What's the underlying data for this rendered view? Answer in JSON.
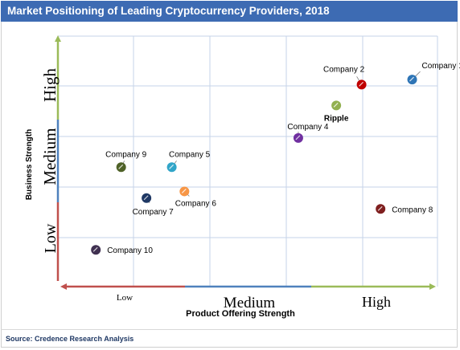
{
  "header": {
    "title": "Market Positioning of Leading Cryptocurrency Providers, 2018"
  },
  "footer": {
    "source": "Source: Credence Research Analysis"
  },
  "colors": {
    "title_bar": "#3d6bb3",
    "low": "#c0504d",
    "medium": "#4f81bd",
    "high": "#9bbb59",
    "grid": "#c5d3e8"
  },
  "chart_data": {
    "type": "scatter",
    "xlabel": "Product Offering Strength",
    "ylabel": "Business Strength",
    "xlim": [
      0,
      3
    ],
    "ylim": [
      0,
      3
    ],
    "grid": true,
    "x_level_labels": [
      "Low",
      "Medium",
      "High"
    ],
    "y_level_labels": [
      "Low",
      "Medium",
      "High"
    ],
    "points": [
      {
        "label": "Company 1",
        "x": 2.8,
        "y": 2.48,
        "color": "#2e75b6"
      },
      {
        "label": "Company 2",
        "x": 2.4,
        "y": 2.42,
        "color": "#c00000"
      },
      {
        "label": "Ripple",
        "x": 2.2,
        "y": 2.17,
        "color": "#92b050"
      },
      {
        "label": "Company 4",
        "x": 1.9,
        "y": 1.78,
        "color": "#7030a0"
      },
      {
        "label": "Company 5",
        "x": 0.9,
        "y": 1.43,
        "color": "#31a5c8"
      },
      {
        "label": "Company 6",
        "x": 1.0,
        "y": 1.14,
        "color": "#f79646"
      },
      {
        "label": "Company 7",
        "x": 0.7,
        "y": 1.06,
        "color": "#1f3864"
      },
      {
        "label": "Company 8",
        "x": 2.55,
        "y": 0.93,
        "color": "#7f1f1f"
      },
      {
        "label": "Company 9",
        "x": 0.5,
        "y": 1.43,
        "color": "#4f6228"
      },
      {
        "label": "Company 10",
        "x": 0.3,
        "y": 0.44,
        "color": "#403151"
      }
    ]
  }
}
